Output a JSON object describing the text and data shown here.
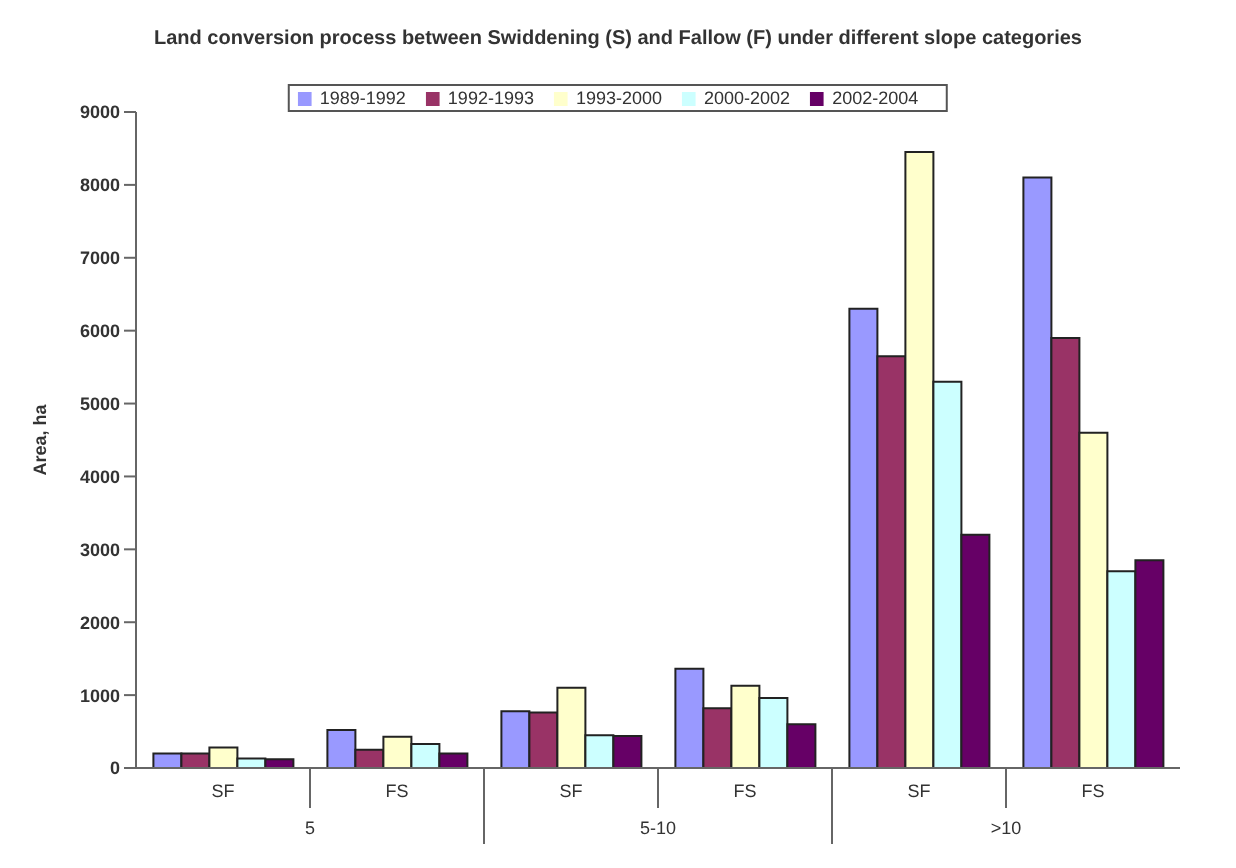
{
  "chart_data": {
    "type": "bar",
    "title": "Land conversion process between Swiddening (S) and Fallow (F) under different slope categories",
    "ylabel": "Area, ha",
    "categories": [
      "SF",
      "FS",
      "SF",
      "FS",
      "SF",
      "FS"
    ],
    "series": [
      {
        "name": "1989-1992",
        "color": "#9999ff",
        "values": [
          200,
          520,
          780,
          1360,
          6300,
          8100
        ]
      },
      {
        "name": "1992-1993",
        "color": "#993366",
        "values": [
          200,
          250,
          760,
          820,
          5650,
          5900
        ]
      },
      {
        "name": "1993-2000",
        "color": "#ffffcc",
        "values": [
          280,
          430,
          1100,
          1130,
          8450,
          4600
        ]
      },
      {
        "name": "2000-2002",
        "color": "#ccffff",
        "values": [
          130,
          330,
          450,
          960,
          5300,
          2700
        ]
      },
      {
        "name": "2002-2004",
        "color": "#660066",
        "values": [
          120,
          200,
          440,
          600,
          3200,
          2850
        ]
      }
    ],
    "annotations": [
      "5",
      "5-10",
      ">10"
    ],
    "ylim": [
      0,
      9000
    ],
    "yticks": [
      0,
      1000,
      2000,
      3000,
      4000,
      5000,
      6000,
      7000,
      8000,
      9000
    ],
    "grid": false,
    "legend": "top"
  }
}
